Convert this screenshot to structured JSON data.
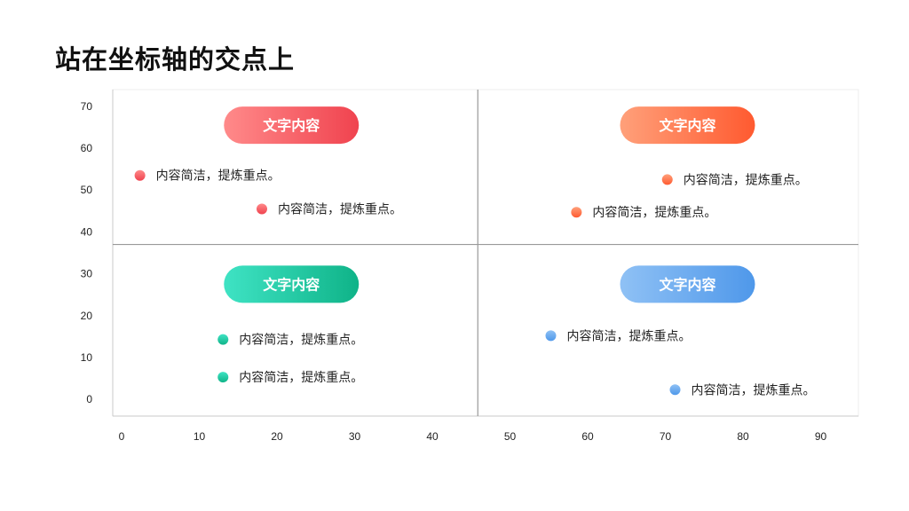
{
  "page": {
    "title": "站在坐标轴的交点上"
  },
  "colors": {
    "red": [
      "#ff8a8a",
      "#f0434f"
    ],
    "orange": [
      "#ffa07a",
      "#ff5a30"
    ],
    "green": [
      "#3fe3c4",
      "#0fb388"
    ],
    "blue": [
      "#8fc1f5",
      "#4f98ea"
    ],
    "axis": "#c8c8c8",
    "grid": "#999999"
  },
  "chart_data": {
    "type": "scatter",
    "xlim": [
      0,
      96
    ],
    "ylim": [
      -4,
      74
    ],
    "x_ticks": [
      0,
      10,
      20,
      30,
      40,
      50,
      60,
      70,
      80,
      90
    ],
    "y_ticks": [
      0,
      10,
      20,
      30,
      40,
      50,
      60,
      70
    ],
    "crosshair": {
      "x": 47,
      "y": 37
    },
    "quadrant_labels": [
      {
        "text": "文字内容",
        "color": "red",
        "x": 23,
        "y": 65.5
      },
      {
        "text": "文字内容",
        "color": "orange",
        "x": 74,
        "y": 65.5
      },
      {
        "text": "文字内容",
        "color": "green",
        "x": 23,
        "y": 27.5
      },
      {
        "text": "文字内容",
        "color": "blue",
        "x": 74,
        "y": 27.5
      }
    ],
    "points": [
      {
        "x": 3.5,
        "y": 53.5,
        "label": "内容简洁，提炼重点。",
        "color": "red"
      },
      {
        "x": 19.2,
        "y": 45.5,
        "label": "内容简洁，提炼重点。",
        "color": "red"
      },
      {
        "x": 71.4,
        "y": 52.5,
        "label": "内容简洁，提炼重点。",
        "color": "orange"
      },
      {
        "x": 59.7,
        "y": 44.7,
        "label": "内容简洁，提炼重点。",
        "color": "orange"
      },
      {
        "x": 14.2,
        "y": 14.3,
        "label": "内容简洁，提炼重点。",
        "color": "green"
      },
      {
        "x": 14.2,
        "y": 5.3,
        "label": "内容简洁，提炼重点。",
        "color": "green"
      },
      {
        "x": 56.4,
        "y": 15.2,
        "label": "内容简洁，提炼重点。",
        "color": "blue"
      },
      {
        "x": 72.4,
        "y": 2.3,
        "label": "内容简洁，提炼重点。",
        "color": "blue"
      }
    ]
  }
}
